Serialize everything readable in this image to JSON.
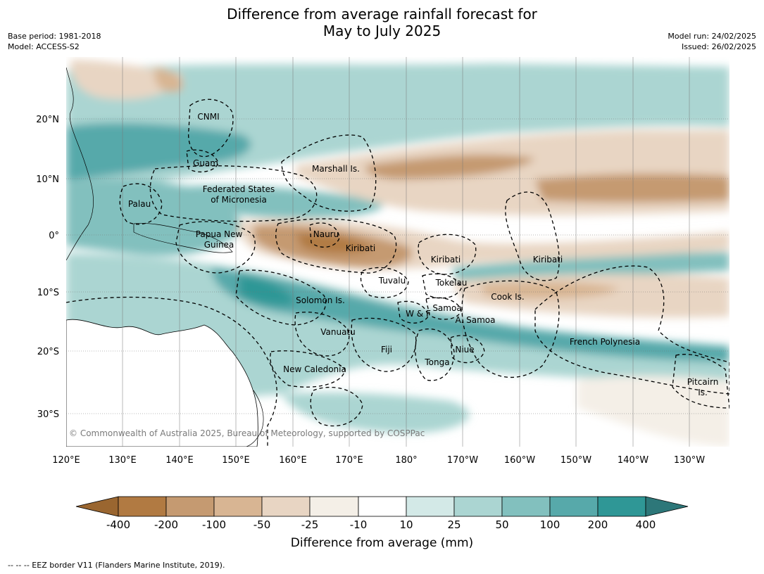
{
  "title_line1": "Difference from average rainfall forecast for",
  "title_line2": "May to July 2025",
  "meta_left": [
    "Base period: 1981-2018",
    "Model: ACCESS-S2"
  ],
  "meta_right": [
    "Model run: 24/02/2025",
    "Issued: 26/02/2025"
  ],
  "copyright": "© Commonwealth of Australia 2025, Bureau of Meteorology, supported by COSPPac",
  "lon_ticks": [
    "120°E",
    "130°E",
    "140°E",
    "150°E",
    "160°E",
    "170°E",
    "180°",
    "170°W",
    "160°W",
    "150°W",
    "140°W",
    "130°W"
  ],
  "lat_ticks": [
    "20°N",
    "10°N",
    "0°",
    "10°S",
    "20°S",
    "30°S"
  ],
  "region_labels": [
    "CNMI",
    "Guam",
    "Marshall Is.",
    "Federated States",
    "of Micronesia",
    "Palau",
    "Papua New",
    "Guinea",
    "Nauru",
    "Kiribati",
    "Kiribati",
    "Kiribati",
    "Tuvalu",
    "Tokelau",
    "Cook Is.",
    "Solomon Is.",
    "Samoa",
    "W & F",
    "A. Samoa",
    "Vanuatu",
    "Fiji",
    "Niue",
    "Tonga",
    "French Polynesia",
    "New Caledonia",
    "Pitcairn",
    "Is."
  ],
  "colorbar": {
    "labels": [
      "-400",
      "-200",
      "-100",
      "-50",
      "-25",
      "-10",
      "10",
      "25",
      "50",
      "100",
      "200",
      "400"
    ],
    "colors": [
      "#9a6630",
      "#b17a42",
      "#c59a71",
      "#d8b593",
      "#e8d5c3",
      "#f4efe7",
      "#ffffff",
      "#d3e9e7",
      "#abd5d2",
      "#82c0be",
      "#57a9aa",
      "#2f9796",
      "#2d7779"
    ],
    "title": "Difference from average (mm)"
  },
  "footnote": "--  --  -- EEZ border V11 (Flanders Marine Institute, 2019)."
}
